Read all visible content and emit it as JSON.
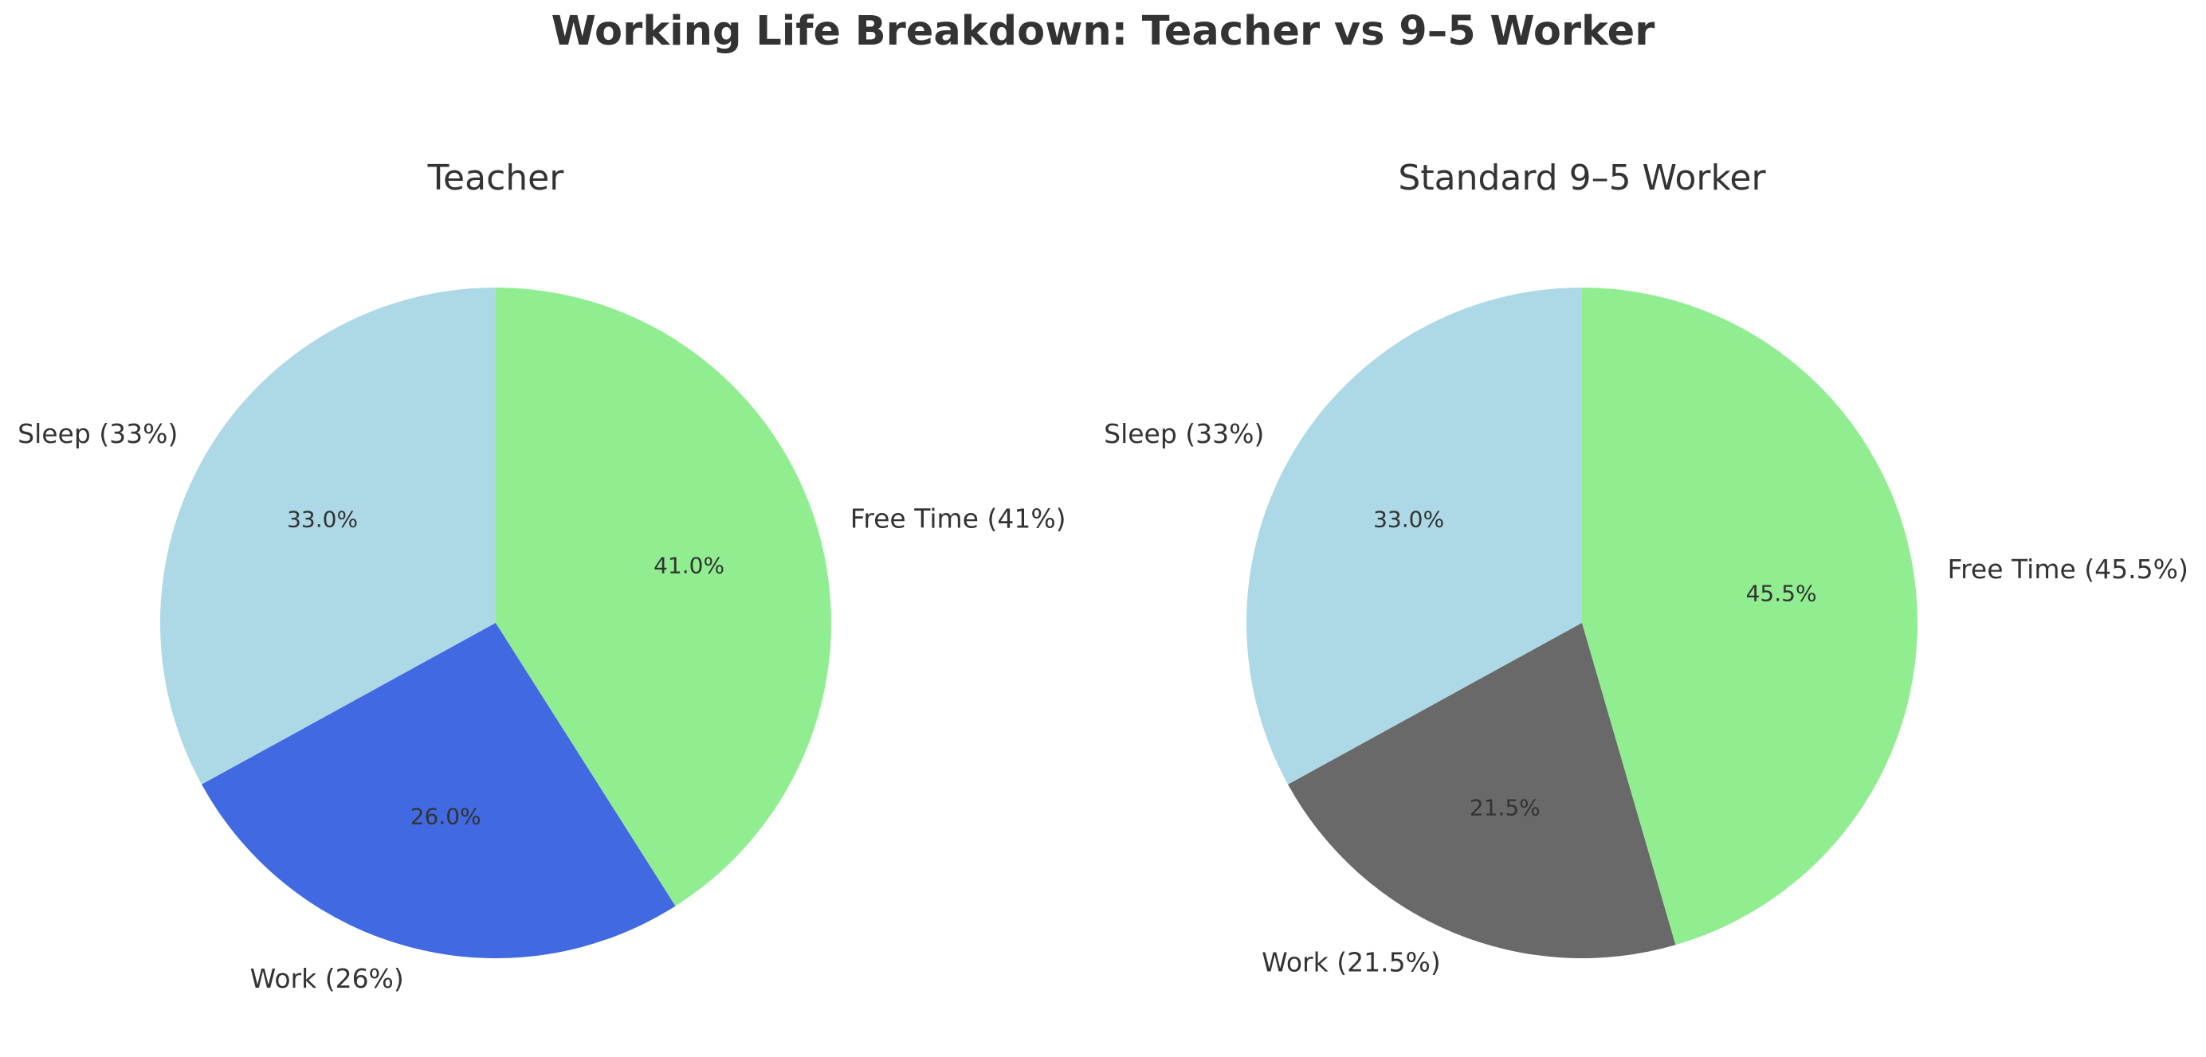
{
  "title": "Working Life Breakdown: Teacher vs 9–5 Worker",
  "chart_data": [
    {
      "type": "pie",
      "title": "Teacher",
      "categories": [
        "Sleep (33%)",
        "Work (26%)",
        "Free Time (41%)"
      ],
      "values": [
        33.0,
        26.0,
        41.0
      ],
      "value_labels": [
        "33.0%",
        "26.0%",
        "41.0%"
      ],
      "colors": [
        "#add8e6",
        "#4169e1",
        "#90ee90"
      ],
      "start_angle_deg": 90,
      "direction": "counterclockwise"
    },
    {
      "type": "pie",
      "title": "Standard 9–5 Worker",
      "categories": [
        "Sleep (33%)",
        "Work (21.5%)",
        "Free Time (45.5%)"
      ],
      "values": [
        33.0,
        21.5,
        45.5
      ],
      "value_labels": [
        "33.0%",
        "21.5%",
        "45.5%"
      ],
      "colors": [
        "#add8e6",
        "#696969",
        "#90ee90"
      ],
      "start_angle_deg": 90,
      "direction": "counterclockwise"
    }
  ]
}
